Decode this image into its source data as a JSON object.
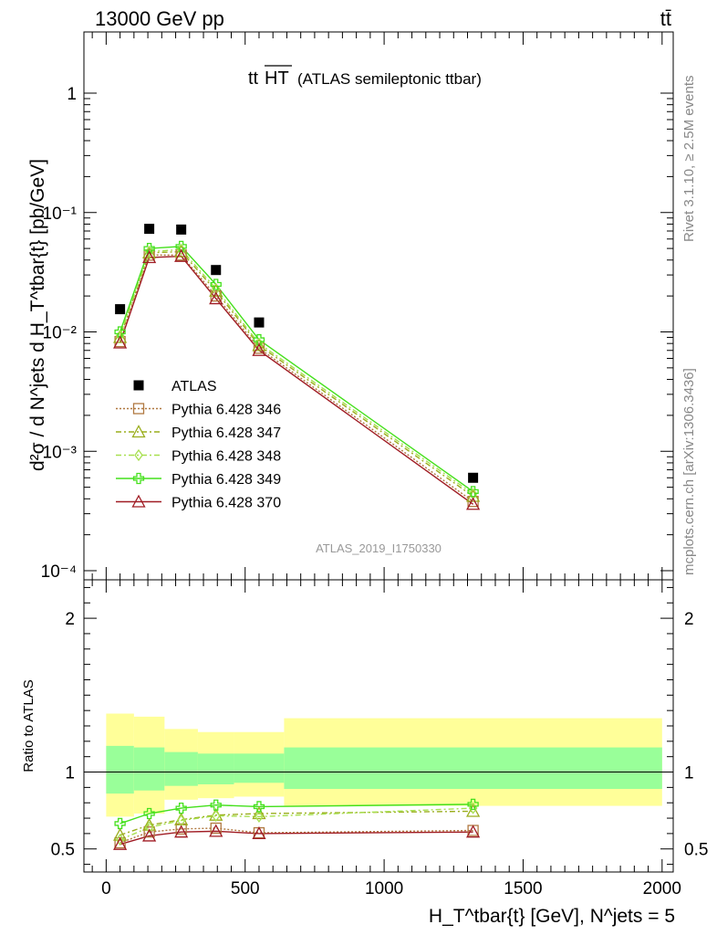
{
  "header": {
    "left": "13000 GeV pp",
    "right": "tt̄"
  },
  "side_text": {
    "rivet": "Rivet 3.1.10, ≥ 2.5M events",
    "mcplots": "mcplots.cern.ch [arXiv:1306.3436]"
  },
  "chart_data": {
    "type": "line",
    "title_main": "tt",
    "title_over": "HT",
    "title_paren": "(ATLAS semileptonic ttbar)",
    "watermark": "ATLAS_2019_I1750330",
    "ylabel_top": "d²σ / d N^jets d H_T^tbar{t} [pb/GeV]",
    "ylabel_ratio": "Ratio to ATLAS",
    "xlabel": "H_T^tbar{t} [GeV], N^jets = 5",
    "xlim": [
      -80,
      2040
    ],
    "ylim_top": [
      0.0001,
      1.0
    ],
    "ylim_ratio": [
      0.35,
      2.25
    ],
    "yscale_top": "log",
    "x_ticks": [
      "0",
      "500",
      "1000",
      "1500",
      "2000"
    ],
    "y_ticks_top": [
      "10⁻⁴",
      "10⁻³",
      "10⁻²",
      "10⁻¹",
      "1"
    ],
    "y_ticks_ratio": [
      "0.5",
      "1",
      "2"
    ],
    "x": [
      50,
      155,
      270,
      395,
      550,
      1320
    ],
    "bins": [
      [
        0,
        100
      ],
      [
        100,
        210
      ],
      [
        210,
        330
      ],
      [
        330,
        460
      ],
      [
        460,
        640
      ],
      [
        640,
        2000
      ]
    ],
    "series": [
      {
        "name": "ATLAS",
        "values": [
          0.0155,
          0.073,
          0.072,
          0.033,
          0.012,
          0.0006
        ],
        "color": "#000000",
        "marker": "square-filled",
        "dash": ""
      },
      {
        "name": "Pythia 6.428 346",
        "values": [
          0.0083,
          0.044,
          0.044,
          0.02,
          0.0073,
          0.00038
        ],
        "color": "#b07840",
        "marker": "square-open",
        "dash": "2,2"
      },
      {
        "name": "Pythia 6.428 347",
        "values": [
          0.009,
          0.046,
          0.047,
          0.022,
          0.0077,
          0.00042
        ],
        "color": "#9aad1c",
        "marker": "triangle-open",
        "dash": "6,3,2,3"
      },
      {
        "name": "Pythia 6.428 348",
        "values": [
          0.0093,
          0.047,
          0.049,
          0.023,
          0.008,
          0.00044
        ],
        "color": "#a8e050",
        "marker": "diamond-open",
        "dash": "6,3,2,3"
      },
      {
        "name": "Pythia 6.428 349",
        "values": [
          0.01,
          0.05,
          0.052,
          0.025,
          0.0086,
          0.00046
        ],
        "color": "#44e01c",
        "marker": "cross-open",
        "dash": ""
      },
      {
        "name": "Pythia 6.428 370",
        "values": [
          0.0081,
          0.042,
          0.043,
          0.019,
          0.007,
          0.00036
        ],
        "color": "#a01c24",
        "marker": "triangle-open",
        "dash": ""
      }
    ],
    "ratio_series": [
      {
        "name": "Pythia 6.428 346",
        "values": [
          0.54,
          0.61,
          0.63,
          0.635,
          0.605,
          0.62
        ]
      },
      {
        "name": "Pythia 6.428 347",
        "values": [
          0.59,
          0.655,
          0.69,
          0.72,
          0.73,
          0.745
        ]
      },
      {
        "name": "Pythia 6.428 348",
        "values": [
          0.56,
          0.64,
          0.685,
          0.715,
          0.71,
          0.765
        ]
      },
      {
        "name": "Pythia 6.428 349",
        "values": [
          0.665,
          0.73,
          0.765,
          0.785,
          0.775,
          0.79
        ]
      },
      {
        "name": "Pythia 6.428 370",
        "values": [
          0.53,
          0.585,
          0.61,
          0.615,
          0.6,
          0.61
        ]
      }
    ],
    "ratio_band_stat": [
      [
        0.86,
        1.17
      ],
      [
        0.88,
        1.16
      ],
      [
        0.91,
        1.13
      ],
      [
        0.92,
        1.12
      ],
      [
        0.93,
        1.12
      ],
      [
        0.89,
        1.16
      ]
    ],
    "ratio_band_total": [
      [
        0.71,
        1.38
      ],
      [
        0.73,
        1.36
      ],
      [
        0.82,
        1.28
      ],
      [
        0.83,
        1.26
      ],
      [
        0.84,
        1.26
      ],
      [
        0.78,
        1.35
      ]
    ],
    "band_colors": {
      "stat": "#99ff99",
      "total": "#ffff99"
    },
    "legend_position": "left-middle"
  }
}
